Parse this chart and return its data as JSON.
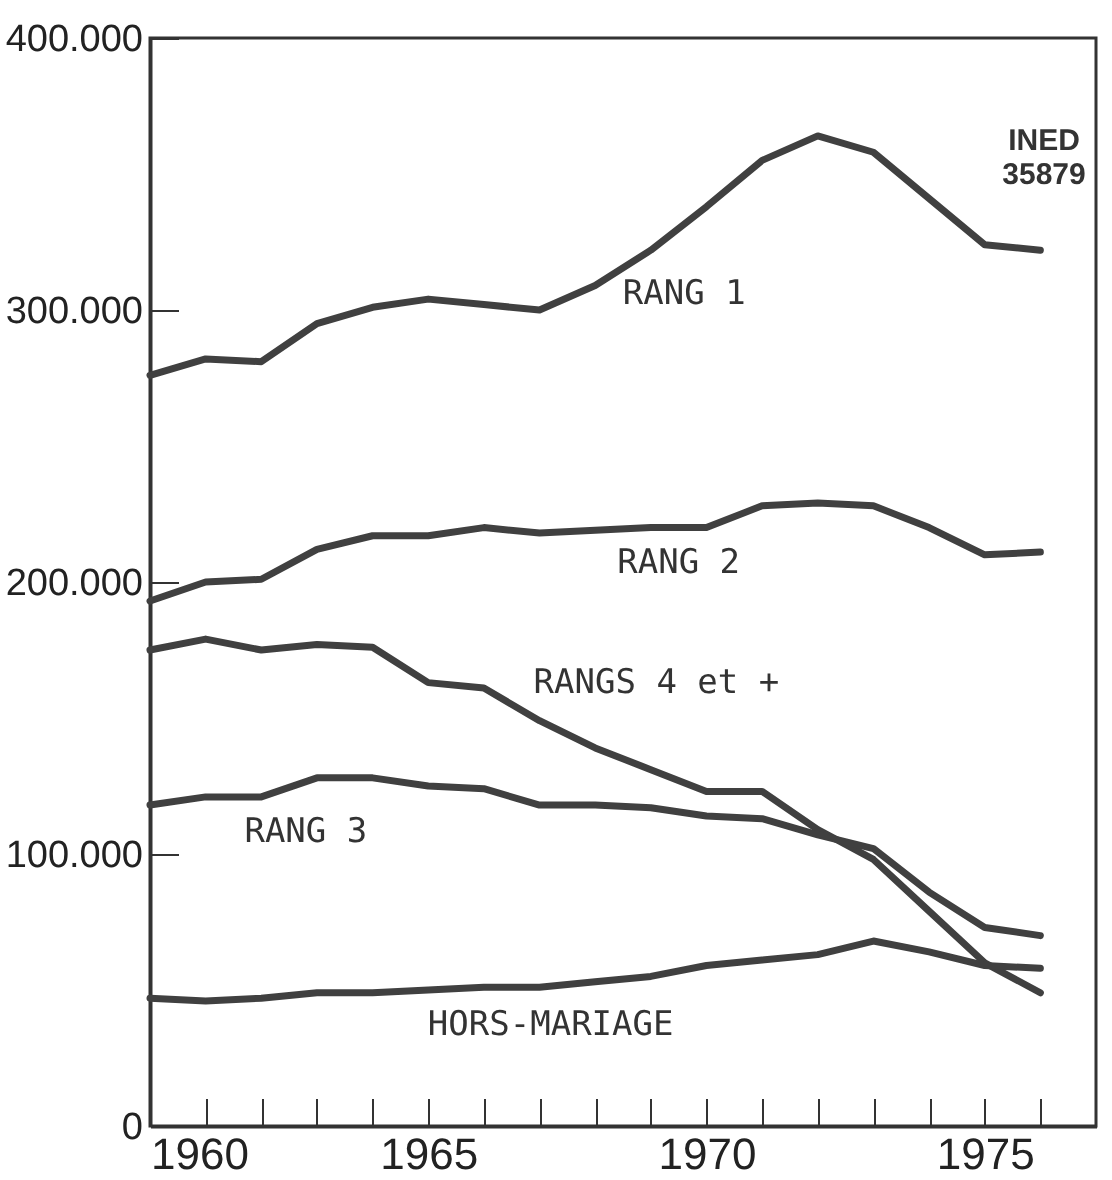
{
  "chart_data": {
    "type": "line",
    "x": [
      1960,
      1961,
      1962,
      1963,
      1964,
      1965,
      1966,
      1967,
      1968,
      1969,
      1970,
      1971,
      1972,
      1973,
      1974,
      1975,
      1976
    ],
    "series": [
      {
        "name": "RANG 1",
        "color": "#404040",
        "values": [
          276000,
          282000,
          281000,
          295000,
          301000,
          304000,
          302000,
          300000,
          309000,
          322000,
          338000,
          355000,
          364000,
          358000,
          341000,
          324000,
          322000
        ]
      },
      {
        "name": "RANG 2",
        "color": "#404040",
        "values": [
          193000,
          200000,
          201000,
          212000,
          217000,
          217000,
          220000,
          218000,
          219000,
          220000,
          220000,
          228000,
          229000,
          228000,
          220000,
          210000,
          211000
        ]
      },
      {
        "name": "RANGS 4 et +",
        "color": "#404040",
        "values": [
          175000,
          179000,
          175000,
          177000,
          176000,
          163000,
          161000,
          149000,
          139000,
          131000,
          123000,
          123000,
          109000,
          98000,
          79000,
          60000,
          49000
        ]
      },
      {
        "name": "RANG 3",
        "color": "#404040",
        "values": [
          118000,
          121000,
          121000,
          128000,
          128000,
          125000,
          124000,
          118000,
          118000,
          117000,
          114000,
          113000,
          107000,
          102000,
          86000,
          73000,
          70000
        ]
      },
      {
        "name": "HORS-MARIAGE",
        "color": "#404040",
        "values": [
          47000,
          46000,
          47000,
          49000,
          49000,
          50000,
          51000,
          51000,
          53000,
          55000,
          59000,
          61000,
          63000,
          68000,
          64000,
          59000,
          58000
        ]
      }
    ],
    "xlim": [
      1960,
      1977
    ],
    "xticks": [
      1960,
      {
        "value": 1961,
        "label": null
      },
      {
        "value": 1962,
        "label": null
      },
      {
        "value": 1963,
        "label": null
      },
      {
        "value": 1964,
        "label": null
      },
      1965,
      {
        "value": 1966,
        "label": null
      },
      {
        "value": 1967,
        "label": null
      },
      {
        "value": 1968,
        "label": null
      },
      {
        "value": 1969,
        "label": null
      },
      1970,
      {
        "value": 1971,
        "label": null
      },
      {
        "value": 1972,
        "label": null
      },
      {
        "value": 1973,
        "label": null
      },
      {
        "value": 1974,
        "label": null
      },
      1975,
      {
        "value": 1976,
        "label": null
      }
    ],
    "ylim": [
      0,
      400000
    ],
    "yticks": [
      0,
      {
        "value": 100000,
        "label": "100.000"
      },
      {
        "value": 200000,
        "label": "200.000"
      },
      {
        "value": 300000,
        "label": "300.000"
      },
      {
        "value": 400000,
        "label": "400.000"
      }
    ],
    "annotations": [
      "INED\n35879"
    ],
    "grid": false,
    "legend": false,
    "marker": "none",
    "line_style": "solid"
  }
}
